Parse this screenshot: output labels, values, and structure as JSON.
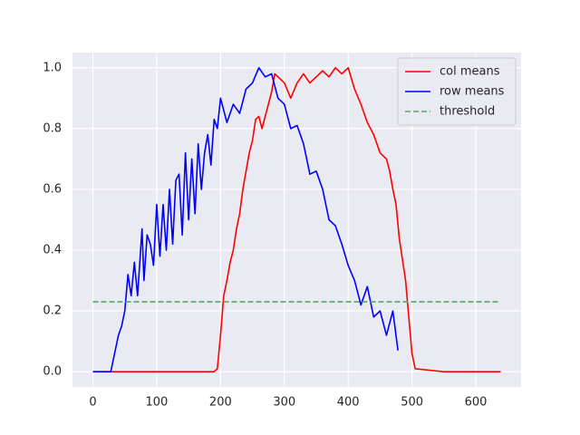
{
  "chart_data": {
    "type": "line",
    "xlim": [
      -31.95,
      670.95
    ],
    "ylim": [
      -0.05,
      1.05
    ],
    "xticks": [
      0,
      100,
      200,
      300,
      400,
      500,
      600
    ],
    "yticks": [
      {
        "value": 0,
        "label": "0.0"
      },
      0.2,
      0.4,
      0.6,
      0.8,
      {
        "value": 1,
        "label": "1.0"
      }
    ],
    "grid": true,
    "legend": "upper right",
    "series": [
      {
        "name": "col means",
        "color": "#ff0000",
        "linestyle": "solid",
        "x": [
          0,
          100,
          190,
          195,
          200,
          205,
          210,
          215,
          220,
          225,
          230,
          235,
          240,
          245,
          250,
          255,
          260,
          265,
          270,
          275,
          280,
          285,
          290,
          300,
          310,
          320,
          330,
          340,
          350,
          360,
          370,
          380,
          390,
          400,
          410,
          420,
          430,
          440,
          450,
          460,
          465,
          470,
          475,
          480,
          490,
          495,
          500,
          505,
          550,
          639
        ],
        "values": [
          0,
          0,
          0,
          0.01,
          0.12,
          0.25,
          0.3,
          0.36,
          0.4,
          0.47,
          0.52,
          0.6,
          0.66,
          0.72,
          0.76,
          0.83,
          0.84,
          0.8,
          0.84,
          0.88,
          0.92,
          0.98,
          0.97,
          0.95,
          0.9,
          0.95,
          0.98,
          0.95,
          0.97,
          0.99,
          0.97,
          1.0,
          0.98,
          1.0,
          0.93,
          0.88,
          0.82,
          0.78,
          0.72,
          0.7,
          0.66,
          0.6,
          0.55,
          0.44,
          0.3,
          0.18,
          0.06,
          0.01,
          0,
          0
        ]
      },
      {
        "name": "row means",
        "color": "#0000ff",
        "linestyle": "solid",
        "x": [
          0,
          28,
          35,
          40,
          45,
          50,
          55,
          60,
          65,
          70,
          77,
          80,
          85,
          90,
          95,
          100,
          105,
          110,
          115,
          120,
          125,
          130,
          135,
          140,
          145,
          150,
          155,
          160,
          165,
          170,
          175,
          180,
          185,
          190,
          195,
          200,
          210,
          220,
          230,
          240,
          250,
          260,
          270,
          280,
          290,
          300,
          310,
          320,
          330,
          340,
          350,
          360,
          370,
          380,
          390,
          400,
          410,
          420,
          430,
          440,
          450,
          460,
          470,
          478
        ],
        "values": [
          0,
          0,
          0.07,
          0.12,
          0.15,
          0.2,
          0.32,
          0.25,
          0.36,
          0.25,
          0.47,
          0.3,
          0.45,
          0.42,
          0.35,
          0.55,
          0.38,
          0.55,
          0.4,
          0.6,
          0.42,
          0.63,
          0.65,
          0.45,
          0.72,
          0.5,
          0.7,
          0.52,
          0.75,
          0.6,
          0.72,
          0.78,
          0.68,
          0.83,
          0.8,
          0.9,
          0.82,
          0.88,
          0.85,
          0.93,
          0.95,
          1.0,
          0.97,
          0.98,
          0.9,
          0.88,
          0.8,
          0.81,
          0.75,
          0.65,
          0.66,
          0.6,
          0.5,
          0.48,
          0.42,
          0.35,
          0.3,
          0.22,
          0.28,
          0.18,
          0.2,
          0.12,
          0.2,
          0.07
        ]
      },
      {
        "name": "threshold",
        "color": "#55a868",
        "linestyle": "dashed",
        "x": [
          0,
          639
        ],
        "values": [
          0.23,
          0.23
        ]
      }
    ]
  }
}
